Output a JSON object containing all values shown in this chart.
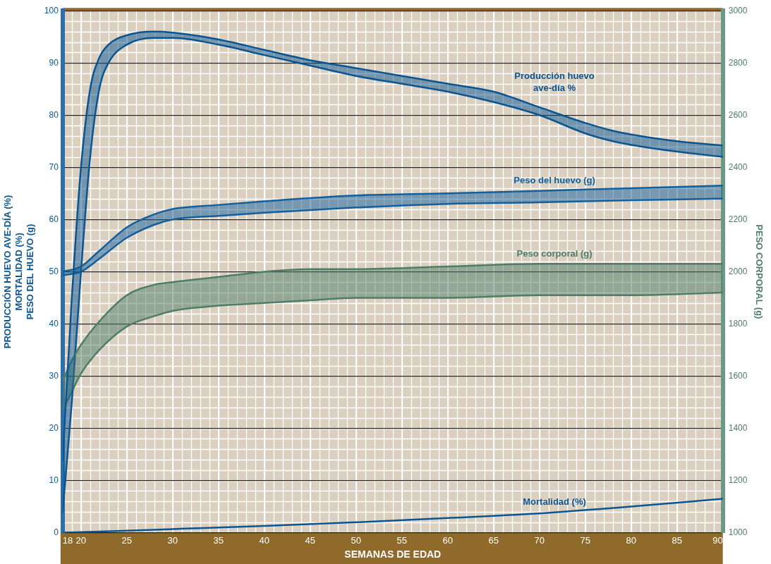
{
  "chart_data": {
    "type": "line",
    "xlabel": "SEMANAS DE EDAD",
    "ylabel": "PRODUCCIÓN HUEVO AVE-DÍA (%)\nMORTALIDAD (%)\nPESO DEL HUEVO (g)",
    "y2label": "PESO CORPORAL (g)",
    "xlim": [
      18,
      90
    ],
    "xticks": [
      18,
      20,
      25,
      30,
      35,
      40,
      45,
      50,
      55,
      60,
      65,
      70,
      75,
      80,
      85,
      90
    ],
    "ylim": [
      0,
      100
    ],
    "yticks": [
      0,
      10,
      20,
      30,
      40,
      50,
      60,
      70,
      80,
      90,
      100
    ],
    "y2lim": [
      1000,
      3000
    ],
    "y2ticks": [
      1000,
      1200,
      1400,
      1600,
      1800,
      2000,
      2200,
      2400,
      2600,
      2800,
      3000
    ],
    "grid": true,
    "legend": false,
    "series": [
      {
        "color": "#0a5592",
        "x": [
          18,
          19,
          20,
          21,
          22,
          23,
          25,
          28,
          30,
          35,
          40,
          45,
          50,
          55,
          60,
          65,
          70,
          75,
          78,
          80,
          85,
          90
        ],
        "values": [
          14,
          45,
          70,
          85,
          91,
          93.5,
          95.3,
          96,
          95.8,
          94.5,
          92.5,
          90.5,
          89,
          87.5,
          86,
          84.5,
          81.5,
          78.5,
          77,
          76.3,
          75,
          74.2
        ],
        "upper": [
          14,
          45,
          70,
          85,
          91,
          93.5,
          95.3,
          96,
          95.8,
          94.5,
          92.5,
          90.5,
          89,
          87.5,
          86,
          84.5,
          81.5,
          78.5,
          77,
          76.3,
          75,
          74.2
        ],
        "lower": [
          4,
          25,
          50,
          72,
          85,
          90,
          93.5,
          94.8,
          94.8,
          93.5,
          91.5,
          89.5,
          87.5,
          86,
          84.5,
          82.5,
          80,
          76.5,
          75,
          74.3,
          73,
          72
        ]
      },
      {
        "color": "#13609c",
        "x": [
          18,
          20,
          22,
          25,
          28,
          30,
          35,
          40,
          50,
          60,
          70,
          80,
          90
        ],
        "values": [
          50,
          51,
          54,
          58.5,
          61,
          62,
          62.8,
          63.5,
          64.6,
          65,
          65.5,
          66,
          66.5
        ],
        "upper": [
          50,
          51,
          54,
          58.5,
          61,
          62,
          62.8,
          63.5,
          64.6,
          65,
          65.5,
          66,
          66.5
        ],
        "lower": [
          49.3,
          50,
          52.5,
          56.5,
          59,
          60,
          60.7,
          61.3,
          62.3,
          63,
          63.3,
          63.7,
          64
        ]
      },
      {
        "color": "#4e7d68",
        "axis": "y2",
        "x": [
          18,
          19,
          20,
          22,
          25,
          28,
          30,
          35,
          40,
          45,
          50,
          60,
          70,
          80,
          90
        ],
        "values": [
          1580,
          1660,
          1720,
          1810,
          1910,
          1950,
          1960,
          1980,
          2000,
          2010,
          2010,
          2020,
          2030,
          2030,
          2030
        ],
        "upper": [
          1580,
          1660,
          1720,
          1810,
          1910,
          1950,
          1960,
          1980,
          2000,
          2010,
          2010,
          2020,
          2030,
          2030,
          2030
        ],
        "lower": [
          1470,
          1540,
          1610,
          1700,
          1790,
          1830,
          1850,
          1870,
          1880,
          1890,
          1900,
          1900,
          1910,
          1910,
          1920
        ]
      },
      {
        "color": "#0a5592",
        "x": [
          18,
          25,
          30,
          40,
          50,
          60,
          70,
          80,
          90
        ],
        "values": [
          0,
          0.4,
          0.7,
          1.3,
          2,
          2.8,
          3.7,
          5,
          6.5
        ]
      },
      {
        "color": "#0a5592",
        "x": [
          18,
          19,
          20,
          21,
          22,
          23,
          25,
          28,
          30,
          35,
          40,
          45,
          50,
          55,
          60,
          65,
          70,
          75,
          78,
          80,
          85,
          90
        ],
        "values": [
          4,
          25,
          50,
          72,
          85,
          90,
          93.5,
          94.8,
          94.8,
          93.5,
          91.5,
          89.5,
          87.5,
          86,
          84.5,
          82.5,
          80,
          76.5,
          75,
          74.3,
          73,
          72
        ]
      },
      {
        "color": "#13609c",
        "x": [
          18,
          20,
          22,
          25,
          28,
          30,
          35,
          40,
          50,
          60,
          70,
          80,
          90
        ],
        "values": [
          49.3,
          50,
          52.5,
          56.5,
          59,
          60,
          60.7,
          61.3,
          62.3,
          63,
          63.3,
          63.7,
          64
        ]
      },
      {
        "color": "#4e7d68",
        "axis": "y2",
        "x": [
          18,
          19,
          20,
          22,
          25,
          28,
          30,
          35,
          40,
          45,
          50,
          60,
          70,
          80,
          90
        ],
        "values": [
          1470,
          1540,
          1610,
          1700,
          1790,
          1830,
          1850,
          1870,
          1880,
          1890,
          1900,
          1900,
          1910,
          1910,
          1920
        ]
      }
    ],
    "annotations": [
      "Producción huevo\nave-día %",
      "Peso del huevo (g)",
      "Peso corporal (g)",
      "Mortalidad (%)"
    ]
  }
}
